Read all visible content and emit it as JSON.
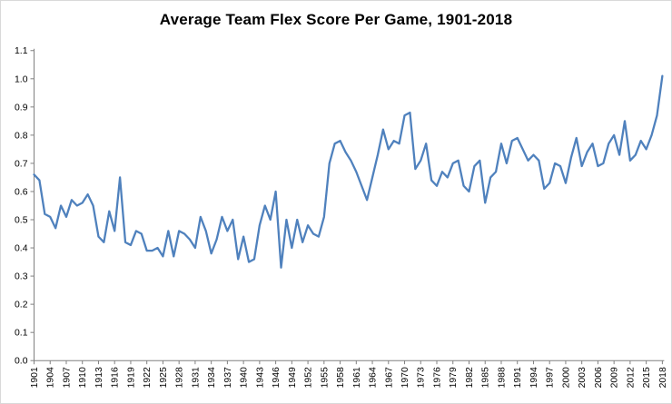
{
  "title": "Average Team Flex Score Per Game, 1901-2018",
  "chart_data": {
    "type": "line",
    "title": "Average Team Flex Score Per Game, 1901-2018",
    "xlabel": "",
    "ylabel": "",
    "x_start": 1901,
    "x_end": 2018,
    "ylim": [
      0.0,
      1.1
    ],
    "y_tick_step": 0.1,
    "grid": false,
    "legend": "none",
    "axis_color": "#808080",
    "tick_label_color": "#000000",
    "y_tick_labels": [
      "0.0",
      "0.1",
      "0.2",
      "0.3",
      "0.4",
      "0.5",
      "0.6",
      "0.7",
      "0.8",
      "0.9",
      "1.0",
      "1.1"
    ],
    "x_tick_labels": [
      "1901",
      "1904",
      "1907",
      "1910",
      "1913",
      "1916",
      "1919",
      "1922",
      "1925",
      "1928",
      "1931",
      "1934",
      "1937",
      "1940",
      "1943",
      "1946",
      "1949",
      "1952",
      "1955",
      "1958",
      "1961",
      "1964",
      "1967",
      "1970",
      "1973",
      "1976",
      "1979",
      "1982",
      "1985",
      "1988",
      "1991",
      "1994",
      "1997",
      "2000",
      "2003",
      "2006",
      "2009",
      "2012",
      "2015",
      "2018"
    ],
    "series": [
      {
        "name": "Average Team Flex Score Per Game",
        "color": "#4f81bd",
        "values": [
          0.66,
          0.64,
          0.52,
          0.51,
          0.47,
          0.55,
          0.51,
          0.57,
          0.55,
          0.56,
          0.59,
          0.55,
          0.44,
          0.42,
          0.53,
          0.46,
          0.65,
          0.42,
          0.41,
          0.46,
          0.45,
          0.39,
          0.39,
          0.4,
          0.37,
          0.46,
          0.37,
          0.46,
          0.45,
          0.43,
          0.4,
          0.51,
          0.46,
          0.38,
          0.43,
          0.51,
          0.46,
          0.5,
          0.36,
          0.44,
          0.35,
          0.36,
          0.48,
          0.55,
          0.5,
          0.6,
          0.33,
          0.5,
          0.4,
          0.5,
          0.42,
          0.48,
          0.45,
          0.44,
          0.51,
          0.7,
          0.77,
          0.78,
          0.74,
          0.71,
          0.67,
          0.62,
          0.57,
          0.65,
          0.73,
          0.82,
          0.75,
          0.78,
          0.77,
          0.87,
          0.88,
          0.68,
          0.71,
          0.77,
          0.64,
          0.62,
          0.67,
          0.65,
          0.7,
          0.71,
          0.62,
          0.6,
          0.69,
          0.71,
          0.56,
          0.65,
          0.67,
          0.77,
          0.7,
          0.78,
          0.79,
          0.75,
          0.71,
          0.73,
          0.71,
          0.61,
          0.63,
          0.7,
          0.69,
          0.63,
          0.72,
          0.79,
          0.69,
          0.74,
          0.77,
          0.69,
          0.7,
          0.77,
          0.8,
          0.73,
          0.85,
          0.71,
          0.73,
          0.78,
          0.75,
          0.8,
          0.87,
          1.01
        ]
      }
    ]
  }
}
